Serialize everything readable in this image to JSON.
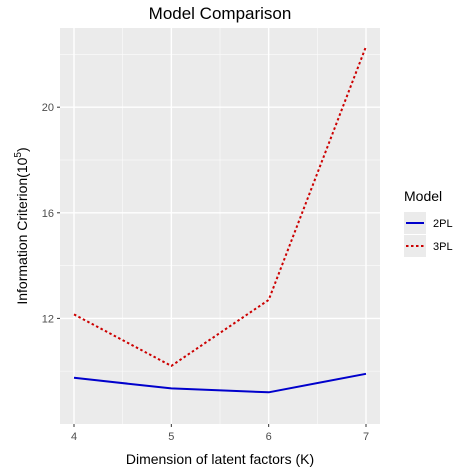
{
  "chart_data": {
    "type": "line",
    "title": "Model Comparison",
    "xlabel": "Dimension of latent factors (K)",
    "ylabel": "Information Criterion(10",
    "ylabel_superscript": "5",
    "ylabel_suffix": ")",
    "x": [
      4,
      5,
      6,
      7
    ],
    "xlim": [
      4,
      7
    ],
    "ylim": [
      8.0,
      23.0
    ],
    "x_ticks": [
      "4",
      "5",
      "6",
      "7"
    ],
    "y_ticks": [
      "12",
      "16",
      "20"
    ],
    "y_tick_values": [
      12,
      16,
      20
    ],
    "grid": true,
    "legend_position": "right",
    "legend_title": "Model",
    "series": [
      {
        "name": "2PL",
        "values": [
          9.75,
          9.35,
          9.2,
          9.9
        ],
        "color": "#0000cc",
        "linestyle": "solid"
      },
      {
        "name": "3PL",
        "values": [
          12.15,
          10.2,
          12.7,
          22.3
        ],
        "color": "#cc0000",
        "linestyle": "dotted"
      }
    ]
  }
}
